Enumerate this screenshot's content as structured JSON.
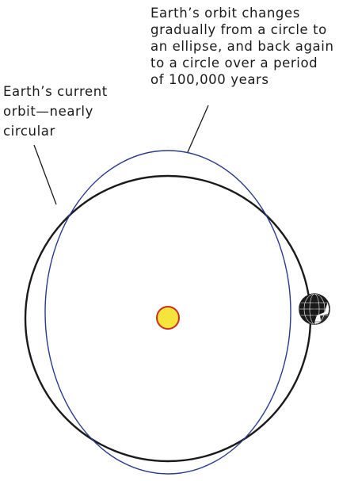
{
  "diagram": {
    "current_orbit_label": {
      "lines": [
        "Earth’s current",
        "orbit—nearly",
        "circular"
      ]
    },
    "changing_orbit_label": {
      "lines": [
        "Earth’s orbit changes",
        "gradually from a circle to",
        "an ellipse, and back again",
        "to a circle over a period",
        "of 100,000 years"
      ]
    },
    "colors": {
      "current_orbit": "#1a1a1a",
      "elliptical_orbit": "#2a3a8c",
      "sun_fill": "#f5e53a",
      "sun_stroke": "#d42a1e",
      "earth": "#1a1a1a",
      "background": "#ffffff"
    },
    "icons": {
      "sun": "sun-icon",
      "earth": "earth-globe-icon"
    }
  }
}
